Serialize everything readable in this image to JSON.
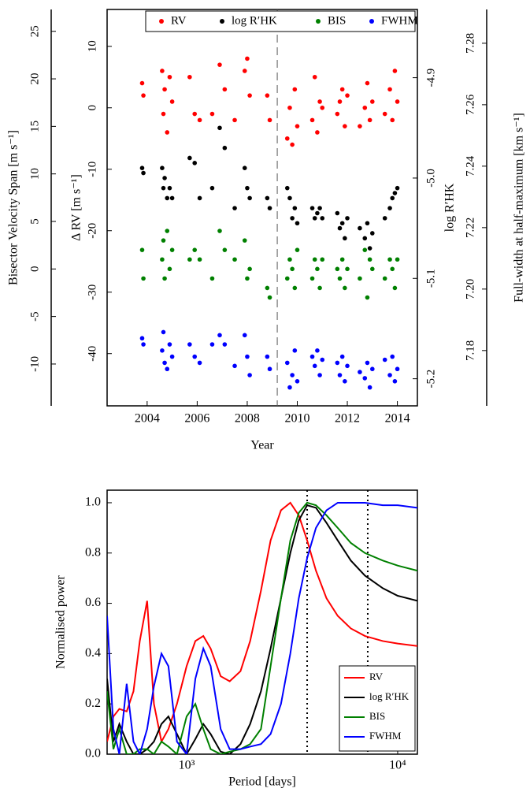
{
  "chart_data": [
    {
      "type": "scatter",
      "xlabel": "Year",
      "xlim": [
        2002.4,
        2014.8
      ],
      "xticks": [
        2004,
        2006,
        2008,
        2010,
        2012,
        2014
      ],
      "vline": 2009.2,
      "legend": "top-right",
      "axes": [
        {
          "position": "left",
          "label": "Δ RV [m s⁻¹]",
          "ylim": [
            -48.5,
            16
          ],
          "yticks": [
            10,
            0,
            -10,
            -20,
            -30,
            -40
          ]
        },
        {
          "position": "right",
          "label": "log R′HK",
          "ylim": [
            -5.227,
            -4.832
          ],
          "yticks": [
            -4.9,
            {
              "value": -5.0,
              "label": "-5.0"
            },
            -5.1,
            -5.2
          ]
        },
        {
          "position": "left-outer",
          "label": "Bisector Velocity Span [m s⁻¹]",
          "ylim": [
            -14.4,
            27.3
          ],
          "yticks": [
            25,
            20,
            15,
            10,
            5,
            0,
            -5,
            -10
          ]
        },
        {
          "position": "right-outer",
          "label": "Full-width at half-maximum [km s⁻¹]",
          "ylim": [
            7.162,
            7.291
          ],
          "yticks": [
            7.28,
            7.26,
            7.24,
            7.22,
            {
              "value": 7.2,
              "label": "7.20"
            },
            7.18
          ]
        }
      ],
      "x": [
        2003.8,
        2003.85,
        2004.6,
        2004.65,
        2004.7,
        2004.8,
        2004.9,
        2005.0,
        2005.7,
        2005.9,
        2006.1,
        2006.6,
        2006.9,
        2007.1,
        2007.5,
        2007.9,
        2008.0,
        2008.1,
        2008.8,
        2008.9,
        2009.6,
        2009.7,
        2009.8,
        2009.9,
        2010.0,
        2010.6,
        2010.7,
        2010.8,
        2010.9,
        2011.0,
        2011.6,
        2011.7,
        2011.8,
        2011.9,
        2012.0,
        2012.5,
        2012.7,
        2012.8,
        2012.9,
        2013.0,
        2013.5,
        2013.7,
        2013.8,
        2013.9,
        2014.0
      ],
      "series": [
        {
          "name": "RV",
          "color": "#ff0000",
          "axis": 0,
          "values": [
            4,
            2,
            6,
            -1,
            3,
            -4,
            5,
            1,
            5,
            -1,
            -2,
            -1,
            7,
            3,
            -2,
            6,
            8,
            2,
            2,
            -2,
            -5,
            0,
            -6,
            3,
            -3,
            -2,
            5,
            -4,
            1,
            0,
            -1,
            1,
            3,
            -3,
            2,
            -3,
            0,
            4,
            -2,
            1,
            -1,
            3,
            -2,
            6,
            1
          ]
        },
        {
          "name": "log R′HK",
          "color": "#000000",
          "axis": 1,
          "values": [
            -4.99,
            -4.995,
            -4.99,
            -5.01,
            -5.0,
            -5.02,
            -5.01,
            -5.02,
            -4.98,
            -4.985,
            -5.02,
            -5.01,
            -4.95,
            -4.97,
            -5.03,
            -4.99,
            -5.01,
            -5.02,
            -5.02,
            -5.03,
            -5.01,
            -5.02,
            -5.04,
            -5.03,
            -5.045,
            -5.03,
            -5.04,
            -5.035,
            -5.03,
            -5.04,
            -5.035,
            -5.05,
            -5.045,
            -5.06,
            -5.04,
            -5.05,
            -5.06,
            -5.045,
            -5.07,
            -5.055,
            -5.04,
            -5.03,
            -5.02,
            -5.015,
            -5.01
          ]
        },
        {
          "name": "BIS",
          "color": "#008000",
          "axis": 2,
          "values": [
            2,
            -1,
            1,
            3,
            -1,
            4,
            0,
            2,
            1,
            2,
            1,
            -1,
            4,
            2,
            1,
            3,
            -1,
            0,
            -2,
            -3,
            -1,
            1,
            0,
            -2,
            2,
            -1,
            1,
            0,
            -2,
            1,
            0,
            -1,
            1,
            -2,
            0,
            -1,
            2,
            -3,
            1,
            0,
            -1,
            1,
            0,
            -2,
            1
          ]
        },
        {
          "name": "FWHM",
          "color": "#0000ff",
          "axis": 3,
          "values": [
            7.184,
            7.182,
            7.18,
            7.186,
            7.176,
            7.174,
            7.182,
            7.178,
            7.182,
            7.178,
            7.176,
            7.182,
            7.185,
            7.182,
            7.175,
            7.185,
            7.178,
            7.172,
            7.178,
            7.174,
            7.176,
            7.168,
            7.172,
            7.18,
            7.17,
            7.178,
            7.175,
            7.18,
            7.172,
            7.177,
            7.176,
            7.172,
            7.178,
            7.17,
            7.175,
            7.173,
            7.171,
            7.176,
            7.168,
            7.174,
            7.177,
            7.172,
            7.178,
            7.17,
            7.174
          ]
        }
      ]
    },
    {
      "type": "line",
      "xlabel": "Period [days]",
      "ylabel": "Normalised power",
      "xscale": "log",
      "xlim": [
        420,
        12400
      ],
      "xticks": [
        {
          "value": 1000,
          "label": "10³"
        },
        {
          "value": 10000,
          "label": "10⁴"
        }
      ],
      "ylim": [
        0,
        1.05
      ],
      "yticks": [
        {
          "value": 0,
          "label": "0.0"
        },
        0.2,
        0.4,
        0.6,
        0.8,
        {
          "value": 1,
          "label": "1.0"
        }
      ],
      "vlines": [
        3725,
        7215
      ],
      "legend": "bottom-right",
      "x": [
        420,
        450,
        480,
        520,
        560,
        600,
        650,
        700,
        760,
        820,
        900,
        1000,
        1100,
        1200,
        1300,
        1450,
        1600,
        1800,
        2000,
        2250,
        2500,
        2800,
        3100,
        3400,
        3725,
        4100,
        4600,
        5200,
        6000,
        7000,
        8500,
        10000,
        12400
      ],
      "series": [
        {
          "name": "RV",
          "color": "#ff0000",
          "values": [
            0.05,
            0.15,
            0.18,
            0.17,
            0.25,
            0.45,
            0.61,
            0.2,
            0.05,
            0.1,
            0.2,
            0.35,
            0.45,
            0.47,
            0.42,
            0.31,
            0.29,
            0.33,
            0.45,
            0.65,
            0.85,
            0.97,
            1.0,
            0.95,
            0.85,
            0.73,
            0.62,
            0.55,
            0.5,
            0.47,
            0.45,
            0.44,
            0.43
          ]
        },
        {
          "name": "log R′HK",
          "color": "#000000",
          "values": [
            0.3,
            0.05,
            0.12,
            0.05,
            0.0,
            0.0,
            0.02,
            0.05,
            0.12,
            0.15,
            0.08,
            0.0,
            0.06,
            0.12,
            0.08,
            0.01,
            0.0,
            0.04,
            0.12,
            0.25,
            0.42,
            0.62,
            0.8,
            0.93,
            0.99,
            0.98,
            0.92,
            0.85,
            0.77,
            0.71,
            0.66,
            0.63,
            0.61
          ]
        },
        {
          "name": "BIS",
          "color": "#008000",
          "values": [
            0.25,
            0.02,
            0.1,
            0.0,
            0.0,
            0.02,
            0.02,
            0.0,
            0.05,
            0.03,
            0.0,
            0.15,
            0.2,
            0.1,
            0.02,
            0.0,
            0.01,
            0.02,
            0.04,
            0.1,
            0.35,
            0.62,
            0.85,
            0.96,
            1.0,
            0.99,
            0.95,
            0.9,
            0.84,
            0.8,
            0.77,
            0.75,
            0.73
          ]
        },
        {
          "name": "FWHM",
          "color": "#0000ff",
          "values": [
            0.55,
            0.1,
            0.0,
            0.28,
            0.05,
            0.0,
            0.1,
            0.27,
            0.4,
            0.35,
            0.05,
            0.0,
            0.3,
            0.42,
            0.35,
            0.1,
            0.02,
            0.02,
            0.03,
            0.04,
            0.08,
            0.2,
            0.4,
            0.62,
            0.78,
            0.9,
            0.97,
            1.0,
            1.0,
            1.0,
            0.99,
            0.99,
            0.98
          ]
        }
      ]
    }
  ]
}
